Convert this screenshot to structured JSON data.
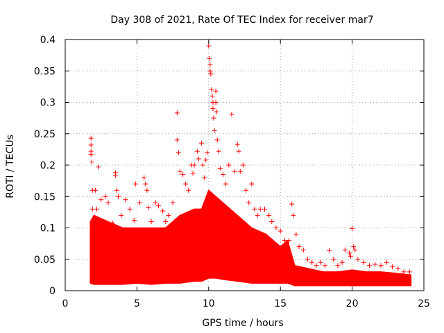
{
  "chart_data": {
    "type": "scatter",
    "title": "Day 308 of 2021, Rate Of TEC Index for receiver mar7",
    "xlabel": "GPS time / hours",
    "ylabel": "ROTI / TECUs",
    "xlim": [
      0,
      25
    ],
    "ylim": [
      0,
      0.4
    ],
    "xticks": [
      0,
      5,
      10,
      15,
      20,
      25
    ],
    "yticks": [
      0,
      0.05,
      0.1,
      0.15,
      0.2,
      0.25,
      0.3,
      0.35,
      0.4
    ],
    "x_tick_labels": [
      "0",
      "5",
      "10",
      "15",
      "20",
      "25"
    ],
    "y_tick_labels": [
      "0",
      "0.05",
      "0.1",
      "0.15",
      "0.2",
      "0.25",
      "0.3",
      "0.35",
      "0.4"
    ],
    "grid": true,
    "marker": "+",
    "color": "#ff0000",
    "series": [
      {
        "name": "ROTI",
        "points": [
          [
            1.8,
            0.243
          ],
          [
            1.8,
            0.232
          ],
          [
            1.8,
            0.222
          ],
          [
            1.8,
            0.217
          ],
          [
            1.85,
            0.205
          ],
          [
            1.9,
            0.16
          ],
          [
            1.9,
            0.13
          ],
          [
            2.0,
            0.11
          ],
          [
            2.1,
            0.16
          ],
          [
            2.2,
            0.13
          ],
          [
            2.3,
            0.197
          ],
          [
            2.5,
            0.145
          ],
          [
            2.8,
            0.15
          ],
          [
            3.0,
            0.14
          ],
          [
            3.3,
            0.108
          ],
          [
            3.5,
            0.188
          ],
          [
            3.5,
            0.183
          ],
          [
            3.6,
            0.16
          ],
          [
            3.7,
            0.15
          ],
          [
            3.9,
            0.12
          ],
          [
            4.2,
            0.145
          ],
          [
            4.5,
            0.13
          ],
          [
            4.8,
            0.112
          ],
          [
            4.9,
            0.17
          ],
          [
            5.2,
            0.14
          ],
          [
            5.5,
            0.18
          ],
          [
            5.6,
            0.17
          ],
          [
            5.7,
            0.16
          ],
          [
            5.8,
            0.132
          ],
          [
            6.0,
            0.11
          ],
          [
            6.3,
            0.14
          ],
          [
            6.5,
            0.135
          ],
          [
            6.8,
            0.127
          ],
          [
            7.0,
            0.11
          ],
          [
            7.2,
            0.12
          ],
          [
            7.5,
            0.14
          ],
          [
            7.8,
            0.283
          ],
          [
            7.8,
            0.24
          ],
          [
            7.9,
            0.22
          ],
          [
            8.0,
            0.19
          ],
          [
            8.2,
            0.185
          ],
          [
            8.4,
            0.17
          ],
          [
            8.6,
            0.16
          ],
          [
            8.8,
            0.2
          ],
          [
            8.9,
            0.187
          ],
          [
            9.0,
            0.2
          ],
          [
            9.2,
            0.222
          ],
          [
            9.3,
            0.21
          ],
          [
            9.5,
            0.235
          ],
          [
            9.6,
            0.2
          ],
          [
            9.7,
            0.18
          ],
          [
            9.8,
            0.208
          ],
          [
            9.9,
            0.22
          ],
          [
            10.0,
            0.39
          ],
          [
            10.05,
            0.37
          ],
          [
            10.1,
            0.36
          ],
          [
            10.1,
            0.35
          ],
          [
            10.15,
            0.345
          ],
          [
            10.2,
            0.32
          ],
          [
            10.25,
            0.31
          ],
          [
            10.3,
            0.3
          ],
          [
            10.3,
            0.29
          ],
          [
            10.35,
            0.275
          ],
          [
            10.4,
            0.255
          ],
          [
            10.5,
            0.318
          ],
          [
            10.5,
            0.3
          ],
          [
            10.55,
            0.285
          ],
          [
            10.6,
            0.24
          ],
          [
            10.7,
            0.222
          ],
          [
            10.8,
            0.195
          ],
          [
            11.0,
            0.185
          ],
          [
            11.2,
            0.17
          ],
          [
            11.4,
            0.2
          ],
          [
            11.6,
            0.281
          ],
          [
            11.8,
            0.19
          ],
          [
            12.0,
            0.233
          ],
          [
            12.1,
            0.222
          ],
          [
            12.2,
            0.19
          ],
          [
            12.4,
            0.2
          ],
          [
            12.6,
            0.16
          ],
          [
            12.8,
            0.14
          ],
          [
            13.0,
            0.17
          ],
          [
            13.2,
            0.13
          ],
          [
            13.4,
            0.12
          ],
          [
            13.6,
            0.13
          ],
          [
            13.9,
            0.13
          ],
          [
            14.2,
            0.12
          ],
          [
            14.4,
            0.11
          ],
          [
            14.7,
            0.1
          ],
          [
            15.0,
            0.095
          ],
          [
            15.3,
            0.08
          ],
          [
            15.6,
            0.08
          ],
          [
            15.8,
            0.138
          ],
          [
            15.9,
            0.12
          ],
          [
            16.1,
            0.09
          ],
          [
            16.3,
            0.07
          ],
          [
            16.6,
            0.065
          ],
          [
            16.9,
            0.05
          ],
          [
            17.2,
            0.045
          ],
          [
            17.5,
            0.04
          ],
          [
            17.8,
            0.045
          ],
          [
            18.1,
            0.04
          ],
          [
            18.4,
            0.064
          ],
          [
            18.7,
            0.05
          ],
          [
            19.0,
            0.04
          ],
          [
            19.3,
            0.045
          ],
          [
            19.5,
            0.065
          ],
          [
            19.8,
            0.06
          ],
          [
            19.9,
            0.055
          ],
          [
            20.0,
            0.099
          ],
          [
            20.1,
            0.07
          ],
          [
            20.2,
            0.065
          ],
          [
            20.4,
            0.05
          ],
          [
            20.8,
            0.045
          ],
          [
            21.2,
            0.04
          ],
          [
            21.6,
            0.042
          ],
          [
            22.0,
            0.04
          ],
          [
            22.4,
            0.045
          ],
          [
            22.8,
            0.038
          ],
          [
            23.2,
            0.035
          ],
          [
            23.6,
            0.03
          ],
          [
            24.0,
            0.03
          ]
        ]
      }
    ],
    "density_envelope": {
      "x": [
        1.75,
        2,
        3,
        4,
        5,
        6,
        7,
        8,
        9,
        9.5,
        10,
        10.5,
        11,
        12,
        13,
        14,
        15,
        15.5,
        16,
        17,
        18,
        19,
        20,
        21,
        22,
        23,
        24.1
      ],
      "upper": [
        0.11,
        0.12,
        0.11,
        0.1,
        0.1,
        0.1,
        0.1,
        0.12,
        0.13,
        0.13,
        0.16,
        0.15,
        0.14,
        0.12,
        0.1,
        0.09,
        0.07,
        0.08,
        0.04,
        0.035,
        0.03,
        0.03,
        0.033,
        0.03,
        0.03,
        0.028,
        0.025
      ],
      "lower": [
        0.012,
        0.01,
        0.01,
        0.01,
        0.012,
        0.01,
        0.012,
        0.012,
        0.015,
        0.015,
        0.02,
        0.02,
        0.018,
        0.015,
        0.012,
        0.012,
        0.012,
        0.012,
        0.008,
        0.008,
        0.008,
        0.008,
        0.008,
        0.008,
        0.008,
        0.008,
        0.008
      ]
    }
  }
}
